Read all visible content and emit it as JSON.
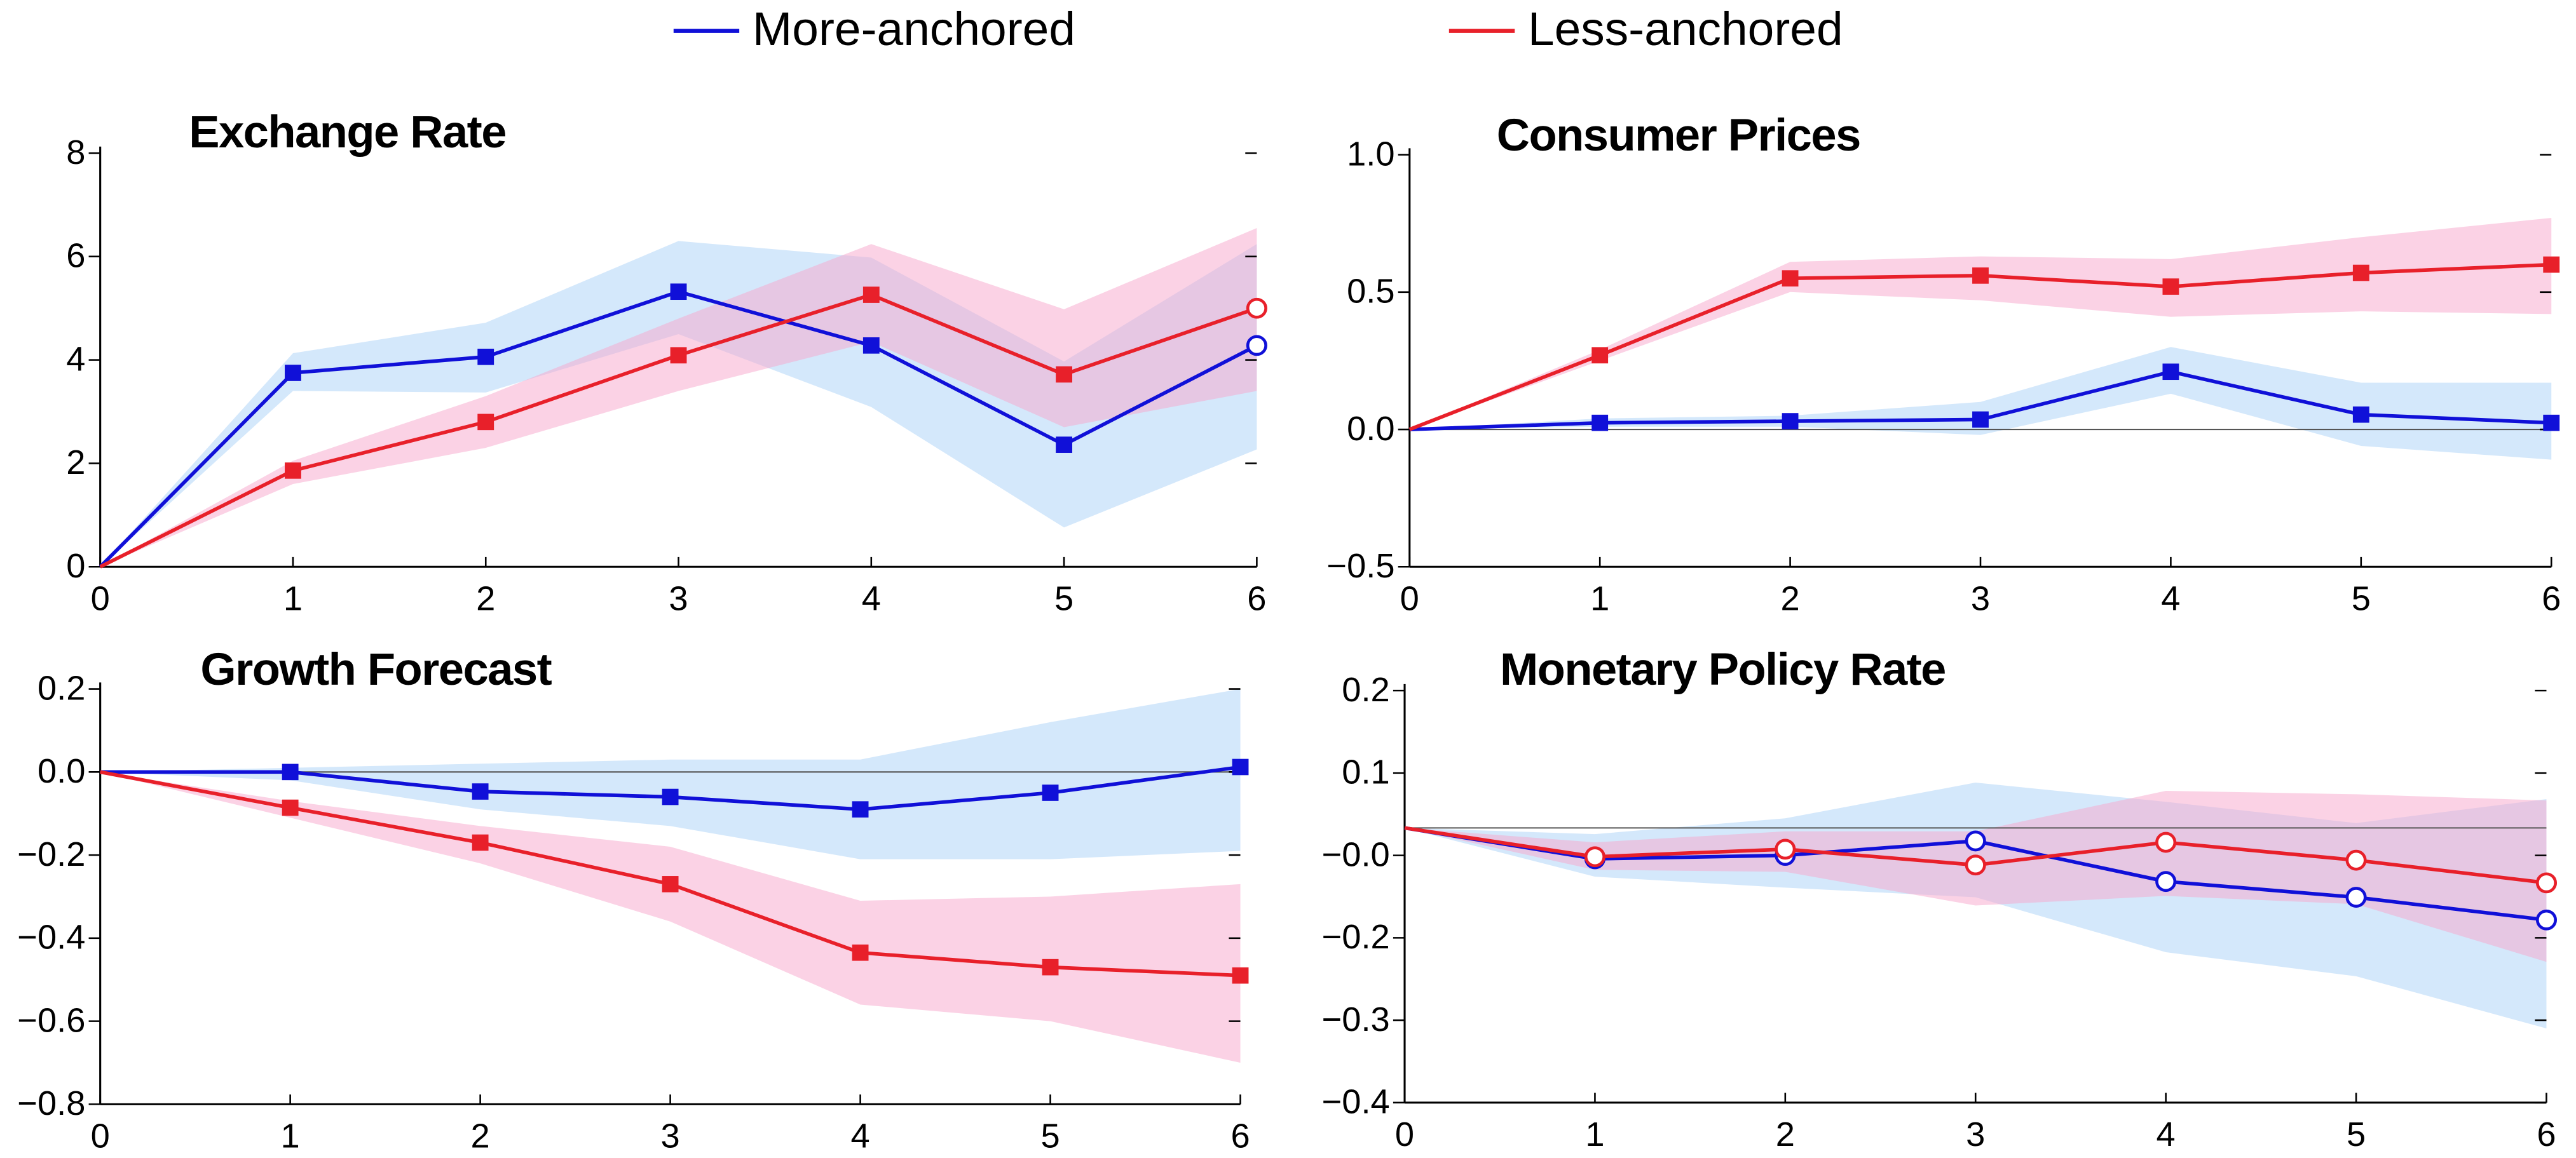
{
  "chart_data": [
    {
      "type": "line",
      "title": "Exchange Rate",
      "x": [
        0,
        1,
        2,
        3,
        4,
        5,
        6
      ],
      "xlim": [
        0,
        6
      ],
      "xticks": [
        0,
        1,
        2,
        3,
        4,
        5,
        6
      ],
      "ylim": [
        0,
        8
      ],
      "yticks": [
        0,
        2,
        4,
        6,
        8
      ],
      "zero_line": false,
      "series": [
        {
          "name": "More-anchored",
          "color": "#1010d8",
          "band_color": "#a9d1f7",
          "values": [
            0,
            3.75,
            4.06,
            5.32,
            4.28,
            2.36,
            4.28
          ],
          "upper": [
            0,
            4.13,
            4.72,
            6.3,
            5.98,
            3.97,
            6.24
          ],
          "lower": [
            0,
            3.4,
            3.37,
            4.5,
            3.09,
            0.76,
            2.27
          ],
          "markers": [
            null,
            "square",
            "square",
            "square",
            "square",
            "square",
            "circle"
          ]
        },
        {
          "name": "Less-anchored",
          "color": "#e8202a",
          "band_color": "#f7a6cb",
          "values": [
            0,
            1.86,
            2.8,
            4.09,
            5.26,
            3.72,
            5.0
          ],
          "upper": [
            0,
            2.05,
            3.3,
            4.8,
            6.24,
            4.98,
            6.55
          ],
          "lower": [
            0,
            1.6,
            2.3,
            3.4,
            4.35,
            2.7,
            3.4
          ],
          "markers": [
            null,
            "square",
            "square",
            "square",
            "square",
            "square",
            "circle"
          ]
        }
      ]
    },
    {
      "type": "line",
      "title": "Consumer Prices",
      "x": [
        0,
        1,
        2,
        3,
        4,
        5,
        6
      ],
      "xlim": [
        0,
        6
      ],
      "xticks": [
        0,
        1,
        2,
        3,
        4,
        5,
        6
      ],
      "ylim": [
        -0.5,
        1.0
      ],
      "yticks": [
        {
          "value": -0.5,
          "label": "−0.5"
        },
        {
          "value": 0,
          "label": "0.0"
        },
        0.5,
        {
          "value": 1,
          "label": "1.0"
        }
      ],
      "zero_line": true,
      "series": [
        {
          "name": "More-anchored",
          "color": "#1010d8",
          "band_color": "#a9d1f7",
          "values": [
            0,
            0.024,
            0.03,
            0.036,
            0.21,
            0.054,
            0.024
          ],
          "upper": [
            0,
            0.04,
            0.05,
            0.1,
            0.3,
            0.17,
            0.17
          ],
          "lower": [
            0,
            0.01,
            0.01,
            -0.02,
            0.13,
            -0.06,
            -0.11
          ],
          "markers": [
            null,
            "square",
            "square",
            "square",
            "square",
            "square",
            "square"
          ]
        },
        {
          "name": "Less-anchored",
          "color": "#e8202a",
          "band_color": "#f7a6cb",
          "values": [
            0,
            0.27,
            0.55,
            0.56,
            0.52,
            0.57,
            0.6
          ],
          "upper": [
            0,
            0.29,
            0.61,
            0.63,
            0.62,
            0.7,
            0.77
          ],
          "lower": [
            0,
            0.25,
            0.5,
            0.47,
            0.41,
            0.43,
            0.42
          ],
          "markers": [
            null,
            "square",
            "square",
            "square",
            "square",
            "square",
            "square"
          ]
        }
      ]
    },
    {
      "type": "line",
      "title": "Growth Forecast",
      "x": [
        0,
        1,
        2,
        3,
        4,
        5,
        6
      ],
      "xlim": [
        0,
        6
      ],
      "xticks": [
        0,
        1,
        2,
        3,
        4,
        5,
        6
      ],
      "ylim": [
        -0.8,
        0.2
      ],
      "yticks": [
        {
          "value": -0.8,
          "label": "−0.8"
        },
        {
          "value": -0.6,
          "label": "−0.6"
        },
        {
          "value": -0.4,
          "label": "−0.4"
        },
        {
          "value": -0.2,
          "label": "−0.2"
        },
        {
          "value": 0,
          "label": "0.0"
        },
        0.2
      ],
      "zero_line": true,
      "series": [
        {
          "name": "More-anchored",
          "color": "#1010d8",
          "band_color": "#a9d1f7",
          "values": [
            0,
            0,
            -0.047,
            -0.06,
            -0.09,
            -0.05,
            0.012
          ],
          "upper": [
            0,
            0.01,
            0.02,
            0.03,
            0.03,
            0.12,
            0.2
          ],
          "lower": [
            0,
            -0.02,
            -0.09,
            -0.13,
            -0.21,
            -0.21,
            -0.19
          ],
          "markers": [
            null,
            "square",
            "square",
            "square",
            "square",
            "square",
            "square"
          ]
        },
        {
          "name": "Less-anchored",
          "color": "#e8202a",
          "band_color": "#f7a6cb",
          "values": [
            0,
            -0.086,
            -0.17,
            -0.27,
            -0.435,
            -0.47,
            -0.49
          ],
          "upper": [
            0,
            -0.07,
            -0.13,
            -0.18,
            -0.31,
            -0.3,
            -0.27
          ],
          "lower": [
            0,
            -0.11,
            -0.22,
            -0.36,
            -0.56,
            -0.6,
            -0.7
          ],
          "markers": [
            null,
            "square",
            "square",
            "square",
            "square",
            "square",
            "square"
          ]
        }
      ]
    },
    {
      "type": "line",
      "title": "Monetary Policy Rate",
      "x": [
        0,
        1,
        2,
        3,
        4,
        5,
        6
      ],
      "xlim": [
        0,
        6
      ],
      "xticks": [
        0,
        1,
        2,
        3,
        4,
        5,
        6
      ],
      "ylim": [
        -0.4,
        0.2
      ],
      "yticks": [
        {
          "value": -0.4,
          "label": "−0.4"
        },
        {
          "value": -0.28,
          "label": "−0.3"
        },
        {
          "value": -0.16,
          "label": "−0.2"
        },
        {
          "value": -0.04,
          "label": "−0.0"
        },
        {
          "value": 0.08,
          "label": "0.1"
        },
        0.2
      ],
      "zero_line": true,
      "series": [
        {
          "name": "More-anchored",
          "color": "#1010d8",
          "band_color": "#a9d1f7",
          "values": [
            0,
            -0.045,
            -0.04,
            -0.019,
            -0.078,
            -0.101,
            -0.134
          ],
          "upper": [
            0,
            -0.009,
            0.014,
            0.066,
            0.038,
            0.007,
            0.042
          ],
          "lower": [
            0,
            -0.071,
            -0.087,
            -0.101,
            -0.181,
            -0.216,
            -0.292
          ],
          "markers": [
            null,
            "circle",
            "circle",
            "circle",
            "circle",
            "circle",
            "circle"
          ]
        },
        {
          "name": "Less-anchored",
          "color": "#e8202a",
          "band_color": "#f7a6cb",
          "values": [
            0,
            -0.042,
            -0.031,
            -0.054,
            -0.021,
            -0.047,
            -0.08
          ],
          "upper": [
            0,
            -0.021,
            -0.005,
            -0.005,
            0.054,
            0.049,
            0.04
          ],
          "lower": [
            0,
            -0.061,
            -0.064,
            -0.113,
            -0.099,
            -0.111,
            -0.195
          ],
          "markers": [
            null,
            "circle",
            "circle",
            "circle",
            "circle",
            "circle",
            "circle"
          ]
        }
      ]
    }
  ]
}
